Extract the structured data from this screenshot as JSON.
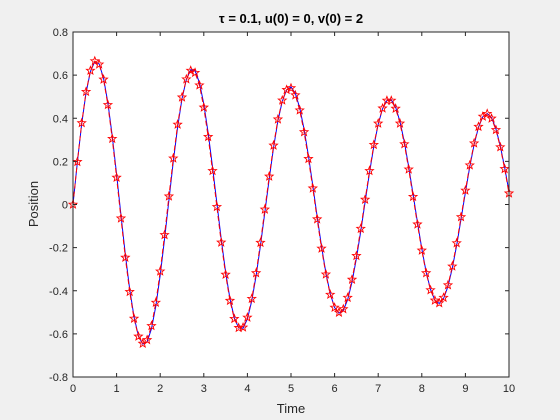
{
  "chart_data": {
    "type": "line",
    "title": "τ = 0.1,  u(0) = 0,  v(0) = 2",
    "xlabel": "Time",
    "ylabel": "Position",
    "xlim": [
      0,
      10
    ],
    "ylim": [
      -0.8,
      0.8
    ],
    "xticks": [
      0,
      1,
      2,
      3,
      4,
      5,
      6,
      7,
      8,
      9,
      10
    ],
    "yticks": [
      -0.8,
      -0.6,
      -0.4,
      -0.2,
      0,
      0.2,
      0.4,
      0.6,
      0.8
    ],
    "xtick_labels": [
      "0",
      "1",
      "2",
      "3",
      "4",
      "5",
      "6",
      "7",
      "8",
      "9",
      "10"
    ],
    "ytick_labels": [
      "-0.8",
      "-0.6",
      "-0.4",
      "-0.2",
      "0",
      "0.2",
      "0.4",
      "0.6",
      "0.8"
    ],
    "grid": false,
    "series": [
      {
        "style": "solid-line",
        "color": "#0000ff",
        "x": [
          0,
          0.1,
          0.2,
          0.3,
          0.4,
          0.5,
          0.6,
          0.7,
          0.8,
          0.9,
          1.0,
          1.1,
          1.2,
          1.3,
          1.4,
          1.5,
          1.6,
          1.7,
          1.8,
          1.9,
          2.0,
          2.1,
          2.2,
          2.3,
          2.4,
          2.5,
          2.6,
          2.7,
          2.8,
          2.9,
          3.0,
          3.1,
          3.2,
          3.3,
          3.4,
          3.5,
          3.6,
          3.7,
          3.8,
          3.9,
          4.0,
          4.1,
          4.2,
          4.3,
          4.4,
          4.5,
          4.6,
          4.7,
          4.8,
          4.9,
          5.0,
          5.1,
          5.2,
          5.3,
          5.4,
          5.5,
          5.6,
          5.7,
          5.8,
          5.9,
          6.0,
          6.1,
          6.2,
          6.3,
          6.4,
          6.5,
          6.6,
          6.7,
          6.8,
          6.9,
          7.0,
          7.1,
          7.2,
          7.3,
          7.4,
          7.5,
          7.6,
          7.7,
          7.8,
          7.9,
          8.0,
          8.1,
          8.2,
          8.3,
          8.4,
          8.5,
          8.6,
          8.7,
          8.8,
          8.9,
          9.0,
          9.1,
          9.2,
          9.3,
          9.4,
          9.5,
          9.6,
          9.7,
          9.8,
          9.9,
          10.0
        ],
        "y": [
          0,
          0.196,
          0.375,
          0.519,
          0.617,
          0.663,
          0.652,
          0.586,
          0.472,
          0.318,
          0.14,
          -0.049,
          -0.231,
          -0.393,
          -0.521,
          -0.609,
          -0.648,
          -0.637,
          -0.576,
          -0.471,
          -0.328,
          -0.16,
          0.02,
          0.199,
          0.359,
          0.49,
          0.58,
          0.625,
          0.62,
          0.565,
          0.466,
          0.332,
          0.174,
          0.006,
          -0.161,
          -0.313,
          -0.437,
          -0.526,
          -0.573,
          -0.574,
          -0.531,
          -0.447,
          -0.33,
          -0.19,
          -0.036,
          0.118,
          0.264,
          0.388,
          0.479,
          0.532,
          0.545,
          0.515,
          0.448,
          0.349,
          0.226,
          0.088,
          -0.056,
          -0.194,
          -0.317,
          -0.414,
          -0.478,
          -0.504,
          -0.491,
          -0.441,
          -0.359,
          -0.25,
          -0.124,
          0.012,
          0.147,
          0.27,
          0.372,
          0.444,
          0.483,
          0.485,
          0.451,
          0.384,
          0.29,
          0.174,
          0.047,
          -0.082,
          -0.205,
          -0.313,
          -0.394,
          -0.444,
          -0.459,
          -0.436,
          -0.38,
          -0.295,
          -0.189,
          -0.068,
          0.056,
          0.175,
          0.278,
          0.358,
          0.407,
          0.422,
          0.403,
          0.351,
          0.272,
          0.172,
          0.06
        ]
      },
      {
        "style": "dashed-line-with-star-markers",
        "color": "#ff0000",
        "x": [
          0,
          0.1,
          0.2,
          0.3,
          0.4,
          0.5,
          0.6,
          0.7,
          0.8,
          0.9,
          1.0,
          1.1,
          1.2,
          1.3,
          1.4,
          1.5,
          1.6,
          1.7,
          1.8,
          1.9,
          2.0,
          2.1,
          2.2,
          2.3,
          2.4,
          2.5,
          2.6,
          2.7,
          2.8,
          2.9,
          3.0,
          3.1,
          3.2,
          3.3,
          3.4,
          3.5,
          3.6,
          3.7,
          3.8,
          3.9,
          4.0,
          4.1,
          4.2,
          4.3,
          4.4,
          4.5,
          4.6,
          4.7,
          4.8,
          4.9,
          5.0,
          5.1,
          5.2,
          5.3,
          5.4,
          5.5,
          5.6,
          5.7,
          5.8,
          5.9,
          6.0,
          6.1,
          6.2,
          6.3,
          6.4,
          6.5,
          6.6,
          6.7,
          6.8,
          6.9,
          7.0,
          7.1,
          7.2,
          7.3,
          7.4,
          7.5,
          7.6,
          7.7,
          7.8,
          7.9,
          8.0,
          8.1,
          8.2,
          8.3,
          8.4,
          8.5,
          8.6,
          8.7,
          8.8,
          8.9,
          9.0,
          9.1,
          9.2,
          9.3,
          9.4,
          9.5,
          9.6,
          9.7,
          9.8,
          9.9,
          10.0
        ],
        "y": [
          0,
          0.198,
          0.378,
          0.523,
          0.621,
          0.665,
          0.65,
          0.58,
          0.462,
          0.305,
          0.125,
          -0.064,
          -0.246,
          -0.405,
          -0.529,
          -0.612,
          -0.645,
          -0.628,
          -0.563,
          -0.455,
          -0.31,
          -0.141,
          0.038,
          0.214,
          0.371,
          0.497,
          0.581,
          0.621,
          0.611,
          0.553,
          0.45,
          0.314,
          0.156,
          -0.011,
          -0.176,
          -0.325,
          -0.446,
          -0.53,
          -0.572,
          -0.57,
          -0.524,
          -0.437,
          -0.318,
          -0.177,
          -0.023,
          0.13,
          0.274,
          0.395,
          0.483,
          0.532,
          0.54,
          0.507,
          0.437,
          0.336,
          0.212,
          0.075,
          -0.068,
          -0.204,
          -0.324,
          -0.418,
          -0.478,
          -0.501,
          -0.485,
          -0.432,
          -0.348,
          -0.238,
          -0.112,
          0.023,
          0.156,
          0.277,
          0.376,
          0.446,
          0.482,
          0.482,
          0.445,
          0.376,
          0.28,
          0.163,
          0.036,
          -0.092,
          -0.213,
          -0.318,
          -0.397,
          -0.445,
          -0.457,
          -0.432,
          -0.374,
          -0.287,
          -0.179,
          -0.058,
          0.065,
          0.182,
          0.284,
          0.361,
          0.408,
          0.421,
          0.399,
          0.346,
          0.266,
          0.165,
          0.052
        ]
      }
    ]
  }
}
